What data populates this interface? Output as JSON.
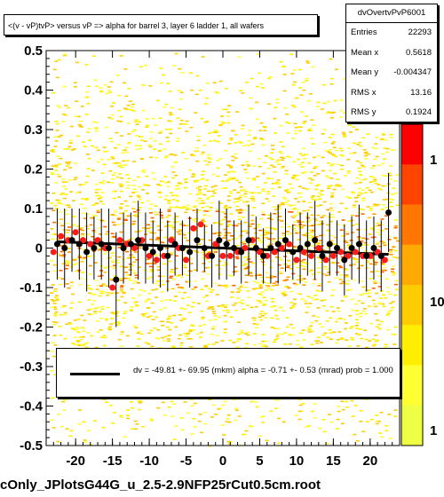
{
  "title": "<(v - vP)tvP> versus   vP => alpha for barrel 3, layer 6 ladder 1, all wafers",
  "stats": {
    "name": "dvOvertvPvP6001",
    "rows": [
      {
        "key": "Entries",
        "value": "22293"
      },
      {
        "key": "Mean x",
        "value": "0.5618"
      },
      {
        "key": "Mean y",
        "value": "-0.004347"
      },
      {
        "key": "RMS x",
        "value": "13.16"
      },
      {
        "key": "RMS y",
        "value": "0.1924"
      }
    ]
  },
  "fit": {
    "text": "dv =  -49.81 +-  69.95 (mkm) alpha =   -0.71 +-  0.53 (mrad) prob = 1.000"
  },
  "footer": "cOnly_JPlotsG44G_u_2.5-2.9NFP25rCut0.5cm.root",
  "colorbar_labels": [
    "1",
    "10",
    "1"
  ],
  "chart_data": {
    "type": "scatter",
    "xlim": [
      -24,
      24
    ],
    "ylim": [
      -0.5,
      0.5
    ],
    "x_ticks": [
      -20,
      -15,
      -10,
      -5,
      0,
      5,
      10,
      15,
      20
    ],
    "x_tick_labels": [
      "-20",
      "-15",
      "-10",
      "-5",
      "0",
      "5",
      "10",
      "15",
      "20"
    ],
    "y_ticks": [
      -0.5,
      -0.4,
      -0.3,
      -0.2,
      -0.1,
      0,
      0.1,
      0.2,
      0.3,
      0.4,
      0.5
    ],
    "y_tick_labels": [
      "-0.5",
      "-0.4",
      "-0.3",
      "-0.2",
      "-0.1",
      "0",
      "0.1",
      "0.2",
      "0.3",
      "0.4",
      "0.5"
    ],
    "series": [
      {
        "marker": "black-circle",
        "color": "#000000",
        "x": [
          -22.5,
          -21.5,
          -20.5,
          -19.5,
          -18.5,
          -17.5,
          -16.5,
          -15.5,
          -14.5,
          -13.5,
          -12.5,
          -11.5,
          -10.5,
          -9.5,
          -8.5,
          -7.5,
          -6.5,
          -5.5,
          -4.5,
          -3.5,
          -2.5,
          -1.5,
          -0.5,
          0.5,
          1.5,
          2.5,
          3.5,
          4.5,
          5.5,
          6.5,
          7.5,
          8.5,
          9.5,
          10.5,
          11.5,
          12.5,
          13.5,
          14.5,
          15.5,
          16.5,
          17.5,
          18.5,
          19.5,
          20.5,
          21.5,
          22.5
        ],
        "y": [
          0.01,
          0.0,
          0.02,
          0.01,
          -0.01,
          0.0,
          0.01,
          0.0,
          -0.08,
          0.0,
          0.01,
          0.02,
          0.0,
          -0.01,
          0.0,
          -0.02,
          0.01,
          0.0,
          -0.01,
          0.02,
          0.0,
          -0.02,
          0.02,
          0.01,
          0.0,
          -0.01,
          0.02,
          0.0,
          -0.02,
          0.0,
          0.01,
          0.02,
          -0.01,
          0.0,
          0.01,
          0.02,
          -0.02,
          0.01,
          0.0,
          -0.03,
          0.0,
          0.01,
          -0.02,
          0.0,
          -0.02,
          0.09
        ],
        "err": [
          0.09,
          0.1,
          0.08,
          0.09,
          0.1,
          0.08,
          0.09,
          0.1,
          0.12,
          0.09,
          0.08,
          0.1,
          0.09,
          0.08,
          0.1,
          0.09,
          0.08,
          0.07,
          0.09,
          0.08,
          0.06,
          0.08,
          0.1,
          0.09,
          0.07,
          0.08,
          0.09,
          0.08,
          0.07,
          0.09,
          0.1,
          0.08,
          0.07,
          0.09,
          0.08,
          0.1,
          0.09,
          0.08,
          0.07,
          0.09,
          0.08,
          0.1,
          0.09,
          0.08,
          0.09,
          0.1
        ]
      },
      {
        "marker": "red-circle",
        "color": "#ff1a1a",
        "x": [
          -23,
          -22,
          -21,
          -20,
          -19,
          -18,
          -17,
          -16,
          -15,
          -14,
          -13,
          -12,
          -11,
          -10,
          -9,
          -8,
          -7,
          -6,
          -5,
          -4,
          -3,
          -2,
          -1,
          0,
          1,
          2,
          3,
          4,
          5,
          6,
          7,
          8,
          9,
          10,
          11,
          12,
          13,
          14,
          15,
          16,
          17,
          18,
          19,
          20,
          21,
          22
        ],
        "y": [
          -0.01,
          0.03,
          0.02,
          0.04,
          0.02,
          0.01,
          0.02,
          0.0,
          -0.1,
          0.02,
          0.01,
          0.0,
          0.02,
          -0.02,
          -0.03,
          -0.02,
          0.02,
          0.0,
          -0.03,
          0.05,
          0.06,
          -0.02,
          0.01,
          -0.02,
          -0.02,
          -0.01,
          0.0,
          0.02,
          -0.01,
          -0.02,
          -0.01,
          0.0,
          0.01,
          -0.03,
          -0.01,
          -0.02,
          0.0,
          -0.03,
          -0.02,
          -0.01,
          -0.02,
          -0.01,
          -0.02,
          -0.02,
          -0.01,
          -0.03
        ]
      }
    ],
    "fit_line": {
      "x": [
        -22.5,
        22.5
      ],
      "y": [
        0.016,
        -0.016
      ]
    },
    "fit_legend": "dv =  -49.81 +-  69.95 (mkm) alpha =   -0.71 +-  0.53 (mrad) prob = 1.000"
  }
}
